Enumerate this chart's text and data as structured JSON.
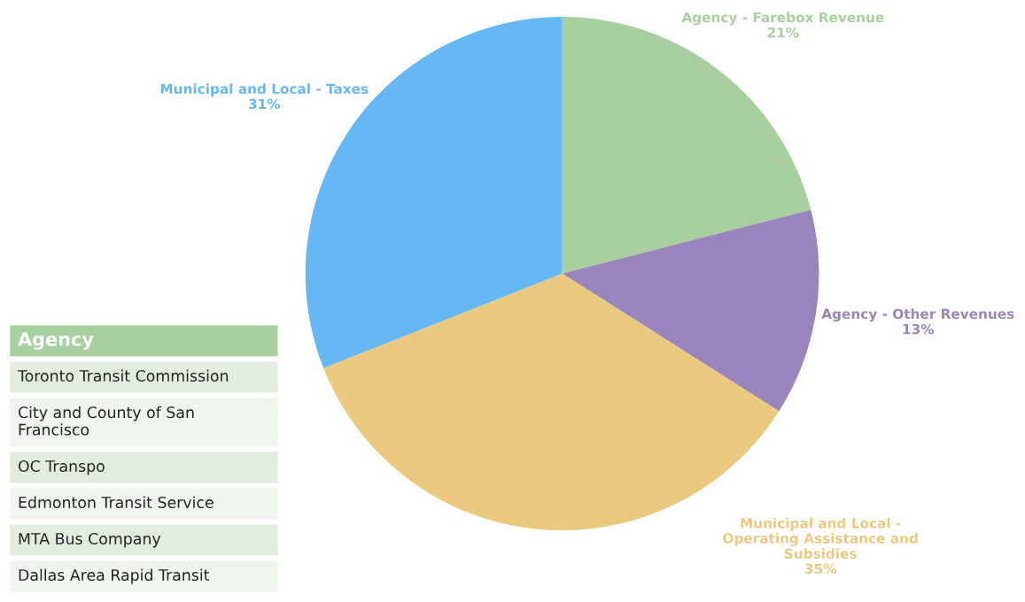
{
  "chart_data": {
    "type": "pie",
    "categories": [
      "Agency - Farebox Revenue",
      "Agency - Other Revenues",
      "Municipal and Local -\nOperating Assistance and\nSubsidies",
      "Municipal and Local - Taxes"
    ],
    "values": [
      21,
      13,
      35,
      31
    ],
    "value_labels": [
      "21%",
      "13%",
      "35%",
      "31%"
    ],
    "colors": [
      "#a8d09f",
      "#9985bb",
      "#ebca80",
      "#66b8f5"
    ],
    "legend": false,
    "annotations": [
      "Agency",
      "Toronto Transit Commission",
      "City and County of San\nFrancisco",
      "OC Transpo",
      "Edmonton Transit Service",
      "MTA Bus Company",
      "Dallas Area Rapid Transit"
    ]
  }
}
